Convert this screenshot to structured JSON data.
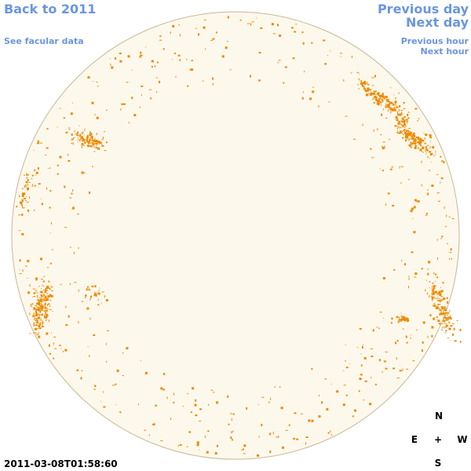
{
  "nav": {
    "back_year": "Back to 2011",
    "facular": "See facular data",
    "previous_day": "Previous day",
    "next_day": "Next day",
    "previous_hour": "Previous hour",
    "next_hour": "Next hour"
  },
  "timestamp": "2011-03-08T01:58:60",
  "compass": {
    "north": "N",
    "east": "E",
    "center": "+",
    "west": "W",
    "south": "S"
  }
}
